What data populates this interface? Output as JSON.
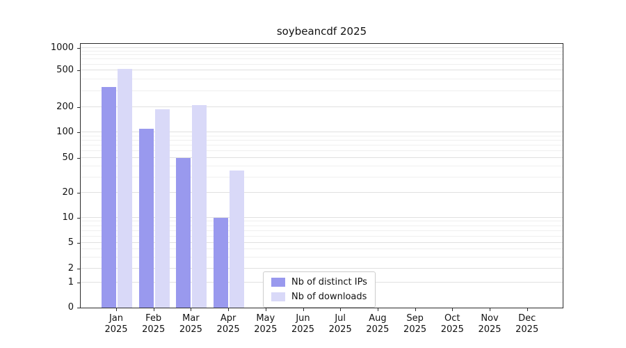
{
  "chart_data": {
    "type": "bar",
    "title": "soybeancdf 2025",
    "yscale": "symlog",
    "grid": "horizontal",
    "legend_position": "bottom-center-inside",
    "year": "2025",
    "months": [
      "Jan",
      "Feb",
      "Mar",
      "Apr",
      "May",
      "Jun",
      "Jul",
      "Aug",
      "Sep",
      "Oct",
      "Nov",
      "Dec"
    ],
    "yticks": [
      0,
      1,
      2,
      5,
      10,
      20,
      50,
      100,
      200,
      500,
      1000
    ],
    "ylim": [
      0,
      1100
    ],
    "series": [
      {
        "name": "Nb of distinct IPs",
        "color": "#9999ee",
        "values": [
          330,
          110,
          50,
          10,
          0,
          0,
          0,
          0,
          0,
          0,
          0,
          0
        ]
      },
      {
        "name": "Nb of downloads",
        "color": "#d9d9f8",
        "values": [
          520,
          190,
          210,
          36,
          0,
          0,
          0,
          0,
          0,
          0,
          0,
          0
        ]
      }
    ]
  }
}
